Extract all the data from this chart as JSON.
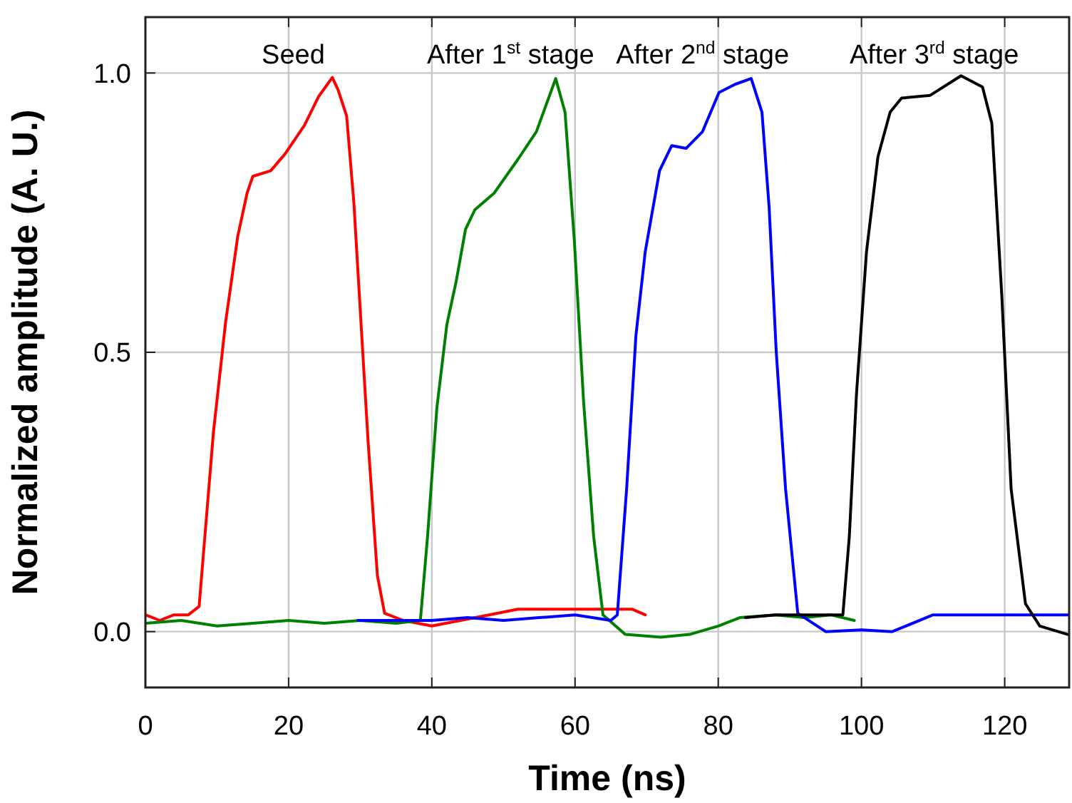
{
  "chart_data": {
    "type": "line",
    "xlabel": "Time (ns)",
    "ylabel": "Normalized amplitude (A. U.)",
    "xlim": [
      0,
      129
    ],
    "ylim": [
      -0.1,
      1.1
    ],
    "xticks": [
      0,
      20,
      40,
      60,
      80,
      100,
      120
    ],
    "yticks": [
      {
        "value": 0,
        "label": "0.0"
      },
      {
        "value": 0.5,
        "label": "0.5"
      },
      {
        "value": 1,
        "label": "1.0"
      }
    ],
    "grid": true,
    "line_style": "solid",
    "marker": "none",
    "series": [
      {
        "color": "#ff0000",
        "x": [
          0,
          2,
          4,
          6,
          7.5,
          9.5,
          11.2,
          12.9,
          14.2,
          15,
          17.5,
          19.5,
          22.2,
          24.2,
          26.1,
          26.9,
          28.1,
          29.1,
          30.1,
          31.1,
          32.4,
          33.4,
          36,
          40,
          44,
          48,
          52,
          56,
          60,
          64,
          68,
          69.8
        ],
        "values": [
          0.03,
          0.02,
          0.03,
          0.03,
          0.045,
          0.357,
          0.554,
          0.708,
          0.785,
          0.815,
          0.825,
          0.855,
          0.906,
          0.958,
          0.992,
          0.97,
          0.923,
          0.77,
          0.554,
          0.34,
          0.1,
          0.033,
          0.02,
          0.01,
          0.02,
          0.03,
          0.04,
          0.04,
          0.04,
          0.04,
          0.04,
          0.03
        ]
      },
      {
        "color": "#008000",
        "x": [
          0,
          5,
          10,
          15,
          20,
          25,
          30,
          35,
          38.4,
          39.4,
          40.7,
          42.1,
          43.4,
          44.7,
          46,
          48.7,
          52,
          54.6,
          57.3,
          58.6,
          59.9,
          61.2,
          62.6,
          63.9,
          67,
          72,
          76,
          80,
          83,
          88,
          92,
          95.7,
          99
        ],
        "values": [
          0.015,
          0.02,
          0.01,
          0.015,
          0.02,
          0.015,
          0.02,
          0.015,
          0.02,
          0.17,
          0.4,
          0.55,
          0.627,
          0.72,
          0.755,
          0.785,
          0.845,
          0.895,
          0.99,
          0.93,
          0.7,
          0.41,
          0.17,
          0.03,
          -0.005,
          -0.01,
          -0.005,
          0.01,
          0.025,
          0.03,
          0.025,
          0.03,
          0.02
        ]
      },
      {
        "color": "#0000ff",
        "x": [
          29.7,
          35,
          40,
          45,
          50,
          55,
          60,
          65,
          65.9,
          67.2,
          68.5,
          69.8,
          71.8,
          73.5,
          75.5,
          77.8,
          80.1,
          82.4,
          84.6,
          86.1,
          87.1,
          88.1,
          89.4,
          91.1,
          95,
          100,
          104.3,
          110,
          115,
          120,
          125,
          129
        ],
        "values": [
          0.02,
          0.02,
          0.02,
          0.025,
          0.02,
          0.025,
          0.03,
          0.02,
          0.03,
          0.255,
          0.53,
          0.68,
          0.825,
          0.87,
          0.865,
          0.895,
          0.965,
          0.98,
          0.99,
          0.93,
          0.76,
          0.5,
          0.255,
          0.033,
          0.0,
          0.003,
          0.0,
          0.03,
          0.03,
          0.03,
          0.03,
          0.03
        ]
      },
      {
        "color": "#000000",
        "x": [
          83.8,
          88,
          92,
          97.4,
          98.3,
          99.3,
          100.7,
          102.3,
          104,
          105.6,
          109.6,
          113.9,
          116.9,
          118.2,
          119.6,
          120.9,
          122.9,
          124.9,
          128.8
        ],
        "values": [
          0.025,
          0.03,
          0.03,
          0.03,
          0.17,
          0.425,
          0.68,
          0.85,
          0.93,
          0.955,
          0.96,
          0.995,
          0.975,
          0.91,
          0.6,
          0.255,
          0.05,
          0.01,
          -0.005
        ]
      }
    ],
    "annotations": [
      "Seed",
      "After 1$^{st}$ stage",
      "After 2$^{nd}$ stage",
      "After 3$^{rd}$ stage"
    ]
  }
}
